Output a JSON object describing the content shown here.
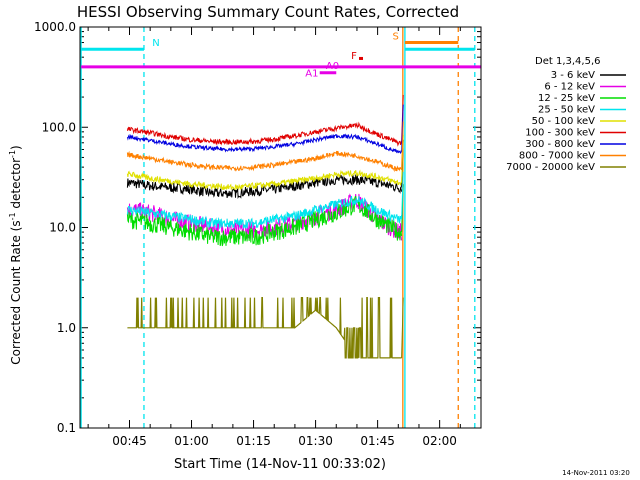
{
  "title": "HESSI Observing Summary Count Rates, Corrected",
  "ylabel_main": "Corrected Count Rate (s",
  "ylabel_exp1": "-1",
  "ylabel_mid": " detector",
  "ylabel_exp2": "-1",
  "ylabel_end": ")",
  "xlabel": "Start Time (14-Nov-11 00:33:02)",
  "footer": "14-Nov-2011 03:20",
  "legend_title": "Det 1,3,4,5,6",
  "colors": {
    "cyan": "#00e5ee",
    "magenta": "#e600e6",
    "orange": "#ff8000",
    "red": "#e00000"
  },
  "chart_data": {
    "type": "line",
    "title": "HESSI Observing Summary Count Rates, Corrected",
    "xlabel": "Start Time (14-Nov-11 00:33:02)",
    "ylabel": "Corrected Count Rate (s^-1 detector^-1)",
    "yscale": "log",
    "ylim": [
      0.1,
      1000
    ],
    "xlim": [
      "00:33:02",
      "02:10"
    ],
    "ytick_labels": [
      "0.1",
      "1.0",
      "10.0",
      "100.0",
      "1000.0"
    ],
    "ytick_values": [
      0.1,
      1,
      10,
      100,
      1000
    ],
    "xtick_labels": [
      "00:45",
      "01:00",
      "01:15",
      "01:30",
      "01:45",
      "02:00"
    ],
    "xtick_minutes": [
      45,
      60,
      75,
      90,
      105,
      120
    ],
    "x_minutes": [
      45,
      50,
      55,
      60,
      65,
      70,
      75,
      80,
      85,
      90,
      95,
      100,
      105,
      110
    ],
    "series": [
      {
        "name": "3 - 6 keV",
        "color": "#000000",
        "values": [
          28,
          26,
          25,
          24,
          22,
          22,
          23,
          24,
          26,
          28,
          30,
          30,
          28,
          25
        ]
      },
      {
        "name": "6 - 12 keV",
        "color": "#e600e6",
        "values": [
          15,
          14,
          12,
          11,
          10,
          9.5,
          9.5,
          10,
          11,
          13,
          15,
          19,
          12,
          9
        ]
      },
      {
        "name": "12 - 25 keV",
        "color": "#00dd00",
        "values": [
          12,
          11,
          10,
          9,
          8,
          8,
          8,
          9,
          10,
          12,
          14,
          17,
          12,
          9
        ]
      },
      {
        "name": "25 - 50 keV",
        "color": "#00e5ee",
        "values": [
          15,
          14,
          13,
          12,
          11,
          11,
          11,
          12,
          13,
          15,
          17,
          19,
          15,
          12
        ]
      },
      {
        "name": "50 - 100 keV",
        "color": "#e0e000",
        "values": [
          34,
          31,
          29,
          27,
          26,
          25,
          26,
          27,
          29,
          31,
          34,
          35,
          32,
          28
        ]
      },
      {
        "name": "100 - 300 keV",
        "color": "#e00000",
        "values": [
          95,
          88,
          80,
          75,
          72,
          71,
          72,
          76,
          82,
          90,
          98,
          105,
          85,
          70
        ]
      },
      {
        "name": "300 - 800 keV",
        "color": "#0000e0",
        "values": [
          80,
          74,
          68,
          64,
          61,
          60,
          61,
          64,
          68,
          75,
          82,
          80,
          68,
          56
        ]
      },
      {
        "name": "800 - 7000 keV",
        "color": "#ff8000",
        "values": [
          53,
          49,
          45,
          42,
          40,
          39,
          40,
          42,
          45,
          49,
          55,
          52,
          45,
          38
        ]
      },
      {
        "name": "7000 - 20000 keV",
        "color": "#808000",
        "values": [
          1,
          1,
          1,
          1,
          1,
          1,
          1,
          1,
          1,
          1.5,
          1,
          0.5,
          0.5,
          0.5
        ]
      }
    ],
    "flags": [
      {
        "label": "N",
        "color": "#00e5ee",
        "value": 600
      },
      {
        "label": "S",
        "color": "#ff8000",
        "value": 700
      },
      {
        "label": "F",
        "color": "#e00000",
        "value": 480
      },
      {
        "label": "A0",
        "color": "#e600e6",
        "value": 400
      },
      {
        "label": "A1",
        "color": "#e600e6",
        "value": 350
      }
    ]
  }
}
